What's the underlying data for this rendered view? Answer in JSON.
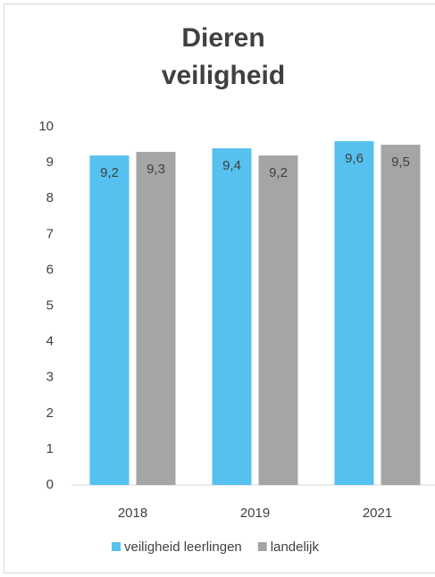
{
  "chart_data": {
    "type": "bar",
    "title": "Dieren veiligheid",
    "categories": [
      "2018",
      "2019",
      "2021"
    ],
    "series": [
      {
        "name": "veiligheid leerlingen",
        "color": "#56c1ef",
        "values": [
          9.2,
          9.4,
          9.6
        ],
        "value_labels": [
          "9,2",
          "9,4",
          "9,6"
        ]
      },
      {
        "name": "landelijk",
        "color": "#a5a5a5",
        "values": [
          9.3,
          9.2,
          9.5
        ],
        "value_labels": [
          "9,3",
          "9,2",
          "9,5"
        ]
      }
    ],
    "ylim": [
      0,
      10
    ],
    "yticks": [
      0,
      1,
      2,
      3,
      4,
      5,
      6,
      7,
      8,
      9,
      10
    ],
    "grid": false,
    "legend": "bottom"
  }
}
